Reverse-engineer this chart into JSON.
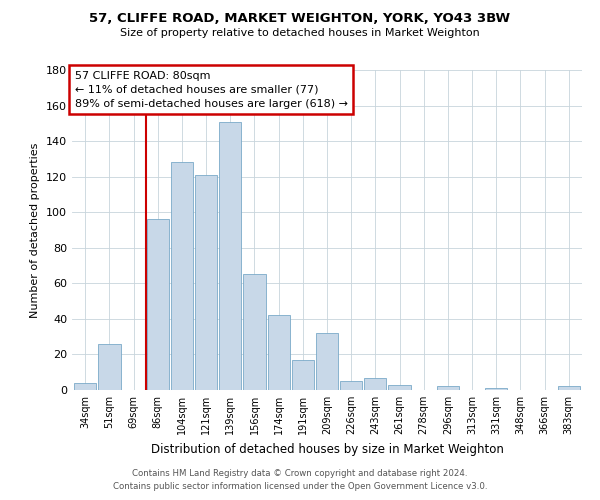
{
  "title": "57, CLIFFE ROAD, MARKET WEIGHTON, YORK, YO43 3BW",
  "subtitle": "Size of property relative to detached houses in Market Weighton",
  "xlabel": "Distribution of detached houses by size in Market Weighton",
  "ylabel": "Number of detached properties",
  "bar_color": "#c8d8e8",
  "bar_edge_color": "#7aaac8",
  "categories": [
    "34sqm",
    "51sqm",
    "69sqm",
    "86sqm",
    "104sqm",
    "121sqm",
    "139sqm",
    "156sqm",
    "174sqm",
    "191sqm",
    "209sqm",
    "226sqm",
    "243sqm",
    "261sqm",
    "278sqm",
    "296sqm",
    "313sqm",
    "331sqm",
    "348sqm",
    "366sqm",
    "383sqm"
  ],
  "values": [
    4,
    26,
    0,
    96,
    128,
    121,
    151,
    65,
    42,
    17,
    32,
    5,
    7,
    3,
    0,
    2,
    0,
    1,
    0,
    0,
    2
  ],
  "ylim": [
    0,
    180
  ],
  "yticks": [
    0,
    20,
    40,
    60,
    80,
    100,
    120,
    140,
    160,
    180
  ],
  "property_line_color": "#cc0000",
  "property_line_x": 2.5,
  "annotation_title": "57 CLIFFE ROAD: 80sqm",
  "annotation_line1": "← 11% of detached houses are smaller (77)",
  "annotation_line2": "89% of semi-detached houses are larger (618) →",
  "annotation_box_color": "#ffffff",
  "annotation_box_edge": "#cc0000",
  "footer1": "Contains HM Land Registry data © Crown copyright and database right 2024.",
  "footer2": "Contains public sector information licensed under the Open Government Licence v3.0.",
  "background_color": "#ffffff",
  "grid_color": "#c8d4dc"
}
